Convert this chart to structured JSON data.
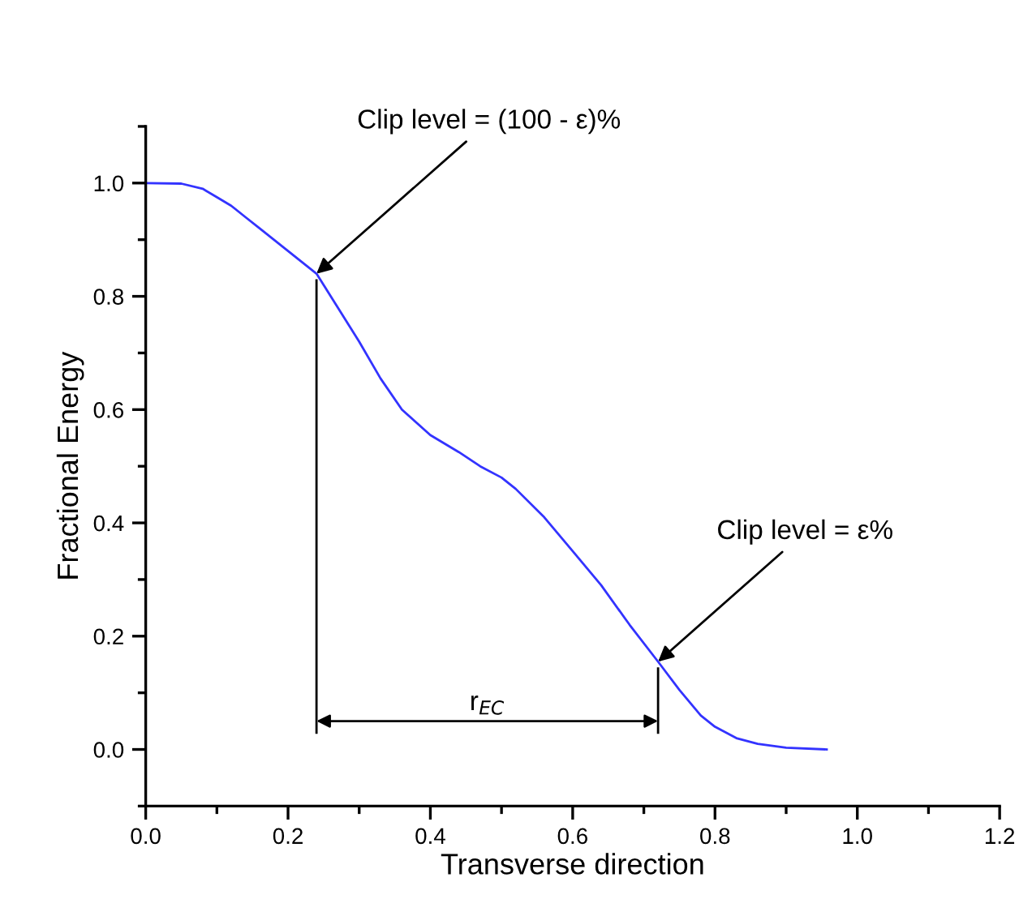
{
  "chart_data": {
    "type": "line",
    "xlabel": "Transverse direction",
    "ylabel": "Fractional Energy",
    "x": [
      0,
      0.05,
      0.08,
      0.1,
      0.12,
      0.14,
      0.16,
      0.18,
      0.2,
      0.22,
      0.24,
      0.27,
      0.3,
      0.33,
      0.36,
      0.4,
      0.44,
      0.47,
      0.5,
      0.52,
      0.56,
      0.6,
      0.64,
      0.68,
      0.72,
      0.75,
      0.78,
      0.8,
      0.83,
      0.86,
      0.9,
      0.957
    ],
    "series": [
      {
        "color": "#3333ff",
        "values": [
          1.0,
          0.999,
          0.99,
          0.975,
          0.96,
          0.94,
          0.92,
          0.9,
          0.88,
          0.86,
          0.84,
          0.78,
          0.72,
          0.655,
          0.6,
          0.555,
          0.525,
          0.5,
          0.48,
          0.46,
          0.41,
          0.35,
          0.29,
          0.22,
          0.155,
          0.105,
          0.06,
          0.04,
          0.02,
          0.01,
          0.003,
          0.0
        ]
      }
    ],
    "xlim": [
      0,
      1.2
    ],
    "xticks": [
      {
        "value": 0,
        "label": "0.0"
      },
      {
        "value": 0.2,
        "label": "0.2"
      },
      {
        "value": 0.4,
        "label": "0.4"
      },
      {
        "value": 0.6,
        "label": "0.6"
      },
      {
        "value": 0.8,
        "label": "0.8"
      },
      {
        "value": 1.0,
        "label": "1.0"
      },
      {
        "value": 1.2,
        "label": "1.2"
      }
    ],
    "ylim": [
      -0.1,
      1.1
    ],
    "yticks": [
      {
        "value": 0,
        "label": "0.0"
      },
      {
        "value": 0.2,
        "label": "0.2"
      },
      {
        "value": 0.4,
        "label": "0.4"
      },
      {
        "value": 0.6,
        "label": "0.6"
      },
      {
        "value": 0.8,
        "label": "0.8"
      },
      {
        "value": 1.0,
        "label": "1.0"
      }
    ],
    "annotations": [
      {
        "text": "Clip level = (100 - ε)%",
        "x": 0.24,
        "y": 0.84
      },
      {
        "text": "Clip level = ε%",
        "x": 0.72,
        "y": 0.155
      },
      "r$_{EC}$"
    ],
    "ref_lines": [
      {
        "axis": "x",
        "value": 0.24,
        "color": "#000000",
        "line_style": "solid"
      },
      {
        "axis": "x",
        "value": 0.72,
        "color": "#000000",
        "line_style": "solid"
      }
    ],
    "grid": false,
    "legend": false,
    "marker": "none",
    "line_style": "solid"
  }
}
